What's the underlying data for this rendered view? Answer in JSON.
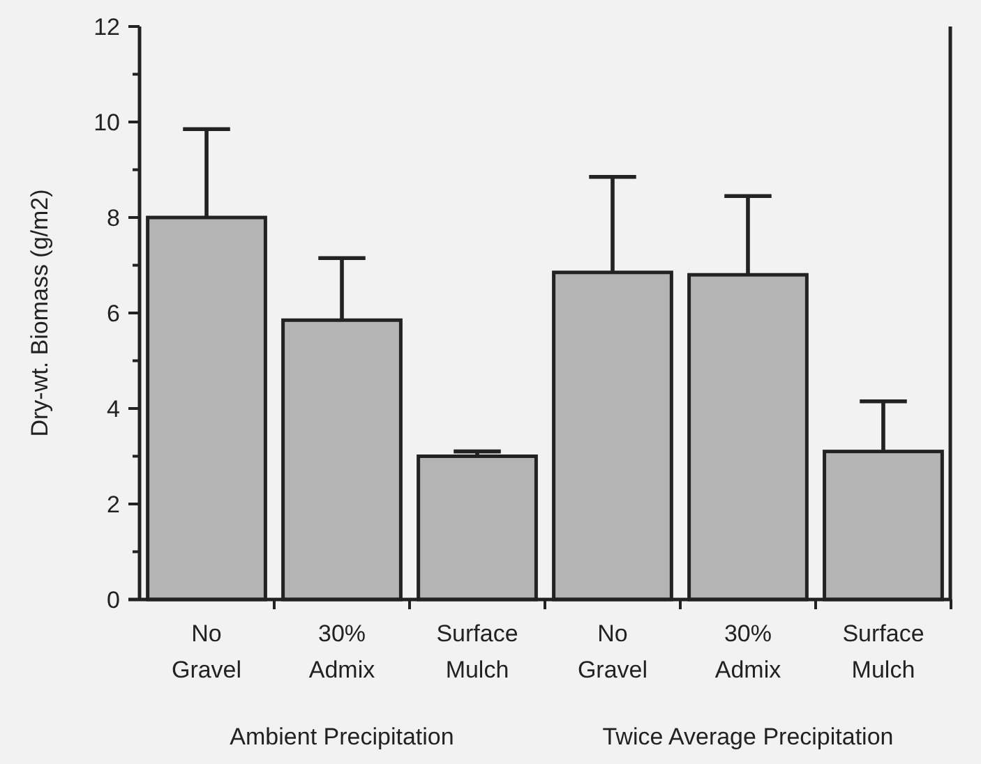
{
  "chart_data": {
    "type": "bar",
    "ylabel": "Dry-wt. Biomass (g/m2)",
    "categories": [
      "No\nGravel",
      "30%\nAdmix",
      "Surface\nMulch",
      "No\nGravel",
      "30%\nAdmix",
      "Surface\nMulch"
    ],
    "values": [
      8.0,
      5.85,
      3.0,
      6.85,
      6.8,
      3.1
    ],
    "errors": [
      [
        8.0,
        9.85
      ],
      [
        5.85,
        7.15
      ],
      [
        3.0,
        3.1
      ],
      [
        6.85,
        8.85
      ],
      [
        6.8,
        8.45
      ],
      [
        3.1,
        4.15
      ]
    ],
    "color": "#b4b4b4",
    "ylim": [
      0,
      12
    ],
    "yticks": [
      0,
      {
        "value": 1,
        "label": null
      },
      2,
      {
        "value": 3,
        "label": null
      },
      4,
      {
        "value": 5,
        "label": null
      },
      6,
      {
        "value": 7,
        "label": null
      },
      8,
      {
        "value": 9,
        "label": null
      },
      10,
      {
        "value": 11,
        "label": null
      },
      12
    ],
    "annotations": [
      "Ambient Precipitation",
      "Twice Average Precipitation"
    ],
    "grid": false
  }
}
